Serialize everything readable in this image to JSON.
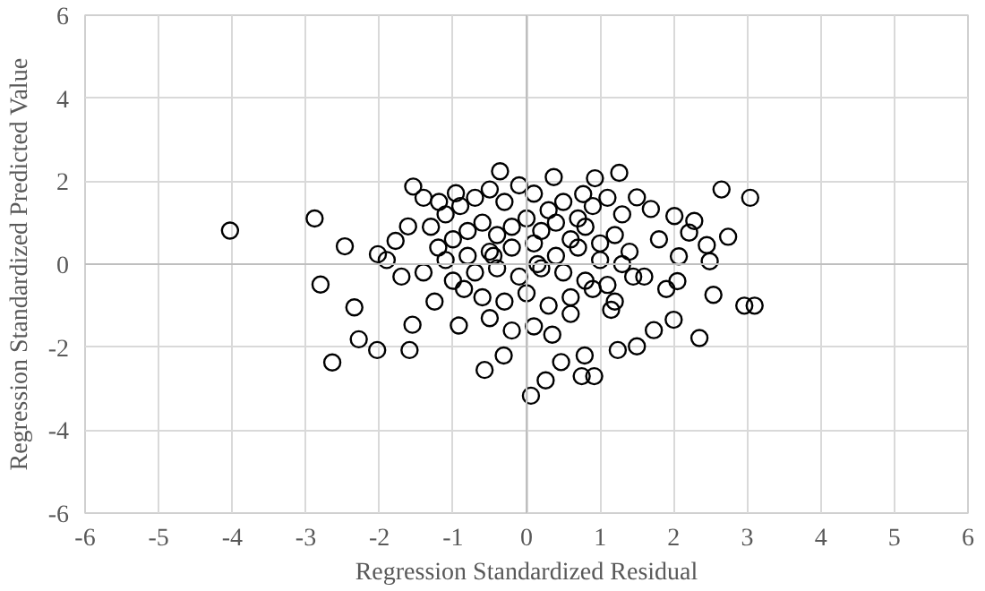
{
  "chart_data": {
    "type": "scatter",
    "xlabel": "Regression Standardized Residual",
    "ylabel": "Regression Standardized Predicted Value",
    "xlim": [
      -6,
      6
    ],
    "ylim": [
      -6,
      6
    ],
    "xticks": [
      -6,
      -5,
      -4,
      -3,
      -2,
      -1,
      0,
      1,
      2,
      3,
      4,
      5,
      6
    ],
    "yticks": [
      -6,
      -4,
      -2,
      0,
      2,
      4,
      6
    ],
    "grid": true,
    "marker": "circle",
    "series": [
      {
        "color": "#000000",
        "x": [
          -4.03,
          -2.88,
          2.65,
          3.04,
          -0.36,
          0.37,
          1.26,
          -1.54,
          -2.64,
          0.06,
          -0.57,
          0.75,
          0.92,
          2.96,
          3.1,
          2.35,
          -2.28,
          -2.03,
          -1.59,
          -2.34,
          -2.8,
          2.05,
          2.54,
          1.73,
          2.0,
          0.26,
          0.47,
          0.79,
          1.24,
          1.5,
          -0.31,
          -1.55,
          -0.92,
          2.45,
          2.74,
          2.28,
          2.01,
          2.21,
          2.49,
          2.07,
          1.5,
          1.69,
          -2.02,
          -2.47,
          -1.78,
          -1.61,
          -0.96,
          0.93,
          0.77,
          -1.4,
          -1.19,
          -1.3,
          -1.1,
          -0.9,
          -0.7,
          -0.5,
          -0.3,
          -0.1,
          0.1,
          0.3,
          0.5,
          0.7,
          0.9,
          1.1,
          1.3,
          -1.2,
          -1.0,
          -0.8,
          -0.6,
          -0.4,
          -0.2,
          0.0,
          0.2,
          0.4,
          0.6,
          0.8,
          1.0,
          1.2,
          1.4,
          -1.4,
          -1.1,
          -0.8,
          -0.5,
          -0.2,
          0.1,
          0.4,
          0.7,
          1.0,
          1.3,
          1.6,
          -1.0,
          -0.7,
          -0.4,
          -0.1,
          0.2,
          0.5,
          0.8,
          1.1,
          -0.6,
          -0.3,
          0.0,
          0.3,
          0.6,
          0.9,
          1.2,
          -1.7,
          -1.9,
          1.8,
          1.9,
          -0.5,
          0.1,
          0.6,
          1.15,
          -0.2,
          0.35,
          -0.85,
          1.45,
          -1.25,
          -0.45,
          0.15
        ],
        "values": [
          0.81,
          1.1,
          1.8,
          1.6,
          2.24,
          2.1,
          2.2,
          1.87,
          -2.37,
          -3.17,
          -2.55,
          -2.7,
          -2.7,
          -1.0,
          -1.0,
          -1.78,
          -1.81,
          -2.07,
          -2.07,
          -1.04,
          -0.49,
          -0.41,
          -0.74,
          -1.59,
          -1.34,
          -2.8,
          -2.36,
          -2.2,
          -2.07,
          -1.98,
          -2.2,
          -1.46,
          -1.48,
          0.46,
          0.66,
          1.04,
          1.16,
          0.76,
          0.07,
          0.19,
          1.61,
          1.33,
          0.24,
          0.43,
          0.56,
          0.91,
          1.71,
          2.07,
          1.69,
          1.6,
          1.5,
          0.9,
          1.2,
          1.4,
          1.6,
          1.8,
          1.5,
          1.9,
          1.7,
          1.3,
          1.5,
          1.1,
          1.4,
          1.6,
          1.2,
          0.4,
          0.6,
          0.8,
          1.0,
          0.7,
          0.9,
          1.1,
          0.8,
          1.0,
          0.6,
          0.9,
          0.5,
          0.7,
          0.3,
          -0.2,
          0.1,
          0.2,
          0.3,
          0.4,
          0.5,
          0.2,
          0.4,
          0.1,
          0.0,
          -0.3,
          -0.4,
          -0.2,
          -0.1,
          -0.3,
          -0.1,
          -0.2,
          -0.4,
          -0.5,
          -0.8,
          -0.9,
          -0.7,
          -1.0,
          -0.8,
          -0.6,
          -0.9,
          -0.3,
          0.1,
          0.6,
          -0.6,
          -1.3,
          -1.5,
          -1.2,
          -1.1,
          -1.6,
          -1.7,
          -0.6,
          -0.3,
          -0.9,
          0.2,
          0.0
        ]
      }
    ]
  }
}
